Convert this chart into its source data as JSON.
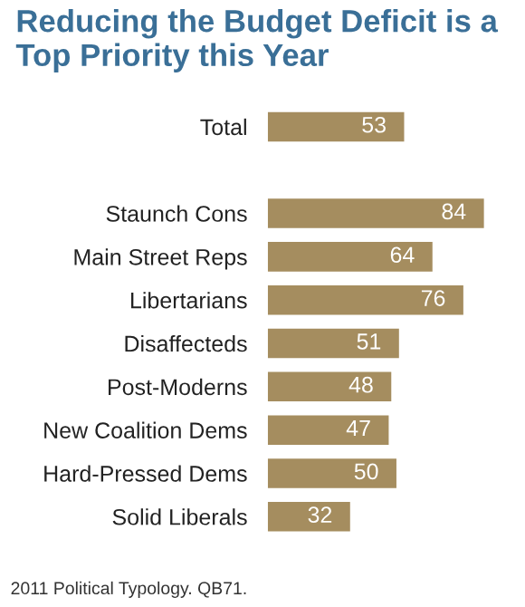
{
  "chart_data": {
    "type": "bar",
    "orientation": "horizontal",
    "title": "Reducing the Budget Deficit is a Top Priority this Year",
    "categories": [
      "Total",
      null,
      "Staunch Cons",
      "Main Street Reps",
      "Libertarians",
      "Disaffecteds",
      "Post-Moderns",
      "New Coalition Dems",
      "Hard-Pressed Dems",
      "Solid Liberals"
    ],
    "values": [
      53,
      null,
      84,
      64,
      76,
      51,
      48,
      47,
      50,
      32
    ],
    "color": "#a58d5f",
    "data_labels": true,
    "grid": false,
    "annotations": [
      "2011 Political Typology. QB71."
    ]
  }
}
